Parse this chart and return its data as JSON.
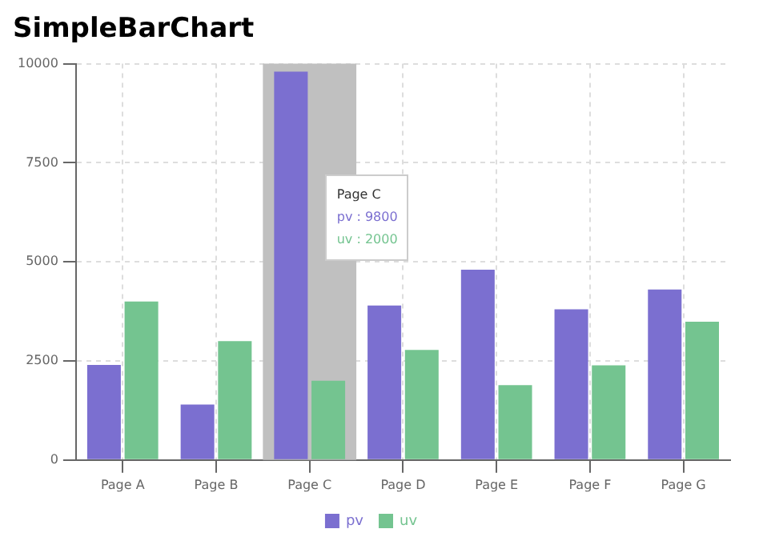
{
  "chart_data": {
    "type": "bar",
    "title": "SimpleBarChart",
    "categories": [
      "Page A",
      "Page B",
      "Page C",
      "Page D",
      "Page E",
      "Page F",
      "Page G"
    ],
    "series": [
      {
        "name": "pv",
        "color": "#7b6fd0",
        "values": [
          2400,
          1400,
          9800,
          3900,
          4800,
          3800,
          4300
        ]
      },
      {
        "name": "uv",
        "color": "#74c490",
        "values": [
          4000,
          3000,
          2000,
          2780,
          1890,
          2390,
          3490
        ]
      }
    ],
    "ylim": [
      0,
      10000
    ],
    "yticks": [
      0,
      2500,
      5000,
      7500,
      10000
    ],
    "grid": true,
    "legend": "bottom",
    "bands": [
      {
        "axis": "x",
        "from": "Page C",
        "to": "Page C",
        "color": "#c0c0c0"
      }
    ],
    "annotations": [
      "Page C",
      "pv : 9800",
      "uv : 2000"
    ]
  }
}
